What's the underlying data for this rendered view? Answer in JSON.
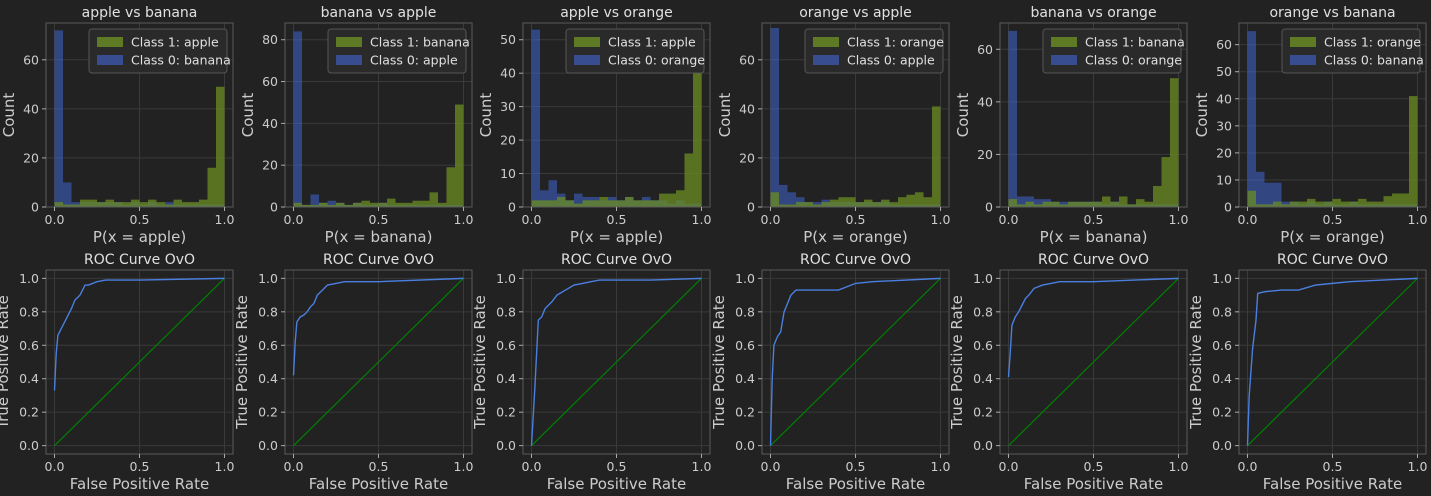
{
  "colors": {
    "class1": "#6b8e23",
    "class0": "#4169e1",
    "roc": "#4a7fe0",
    "diagonal": "#008000"
  },
  "chart_data": [
    {
      "type": "bar",
      "kind": "histogram",
      "title": "apple vs banana",
      "xlabel": "P(x = apple)",
      "ylabel": "Count",
      "xlim": [
        -0.05,
        1.05
      ],
      "ylim": [
        0,
        75
      ],
      "xticks": [
        "0.0",
        "0.5",
        "1.0"
      ],
      "yticks": [
        "0",
        "20",
        "40",
        "60"
      ],
      "ytick_values": [
        0,
        20,
        40,
        60
      ],
      "bin_width": 0.05,
      "legend": [
        "Class 1: apple",
        "Class 0: banana"
      ],
      "legend_position": "upper-right",
      "series": [
        {
          "name": "Class 0: banana",
          "values": [
            72,
            10,
            2,
            2,
            2,
            2,
            2,
            2,
            1,
            2,
            1,
            2,
            1,
            2,
            1,
            1,
            1,
            1,
            1,
            1
          ]
        },
        {
          "name": "Class 1: apple",
          "values": [
            2,
            1,
            1,
            3,
            3,
            2,
            3,
            2,
            2,
            3,
            2,
            3,
            2,
            1,
            3,
            2,
            2,
            3,
            16,
            49
          ]
        }
      ]
    },
    {
      "type": "bar",
      "kind": "histogram",
      "title": "banana vs apple",
      "xlabel": "P(x = banana)",
      "ylabel": "Count",
      "xlim": [
        -0.05,
        1.05
      ],
      "ylim": [
        0,
        88
      ],
      "xticks": [
        "0.0",
        "0.5",
        "1.0"
      ],
      "yticks": [
        "0",
        "20",
        "40",
        "60",
        "80"
      ],
      "ytick_values": [
        0,
        20,
        40,
        60,
        80
      ],
      "bin_width": 0.05,
      "legend": [
        "Class 1: banana",
        "Class 0: apple"
      ],
      "legend_position": "upper-right",
      "series": [
        {
          "name": "Class 0: apple",
          "values": [
            84,
            1,
            6,
            2,
            3,
            2,
            1,
            2,
            1,
            1,
            2,
            1,
            1,
            1,
            1,
            1,
            1,
            1,
            1,
            1
          ]
        },
        {
          "name": "Class 1: banana",
          "values": [
            2,
            1,
            1,
            2,
            1,
            2,
            1,
            2,
            3,
            2,
            2,
            4,
            2,
            2,
            3,
            3,
            7,
            2,
            19,
            49
          ]
        }
      ]
    },
    {
      "type": "bar",
      "kind": "histogram",
      "title": "apple vs orange",
      "xlabel": "P(x = apple)",
      "ylabel": "Count",
      "xlim": [
        -0.05,
        1.05
      ],
      "ylim": [
        0,
        55
      ],
      "xticks": [
        "0.0",
        "0.5",
        "1.0"
      ],
      "yticks": [
        "0",
        "10",
        "20",
        "30",
        "40",
        "50"
      ],
      "ytick_values": [
        0,
        10,
        20,
        30,
        40,
        50
      ],
      "bin_width": 0.05,
      "legend": [
        "Class 1: apple",
        "Class 0: orange"
      ],
      "legend_position": "upper-right",
      "series": [
        {
          "name": "Class 0: orange",
          "values": [
            53,
            5,
            8,
            4,
            2,
            4,
            3,
            3,
            2,
            3,
            2,
            3,
            2,
            3,
            2,
            2,
            1,
            2,
            1,
            1
          ]
        },
        {
          "name": "Class 1: apple",
          "values": [
            2,
            2,
            2,
            3,
            2,
            1,
            2,
            2,
            3,
            2,
            2,
            3,
            2,
            2,
            2,
            4,
            4,
            5,
            16,
            49
          ]
        }
      ]
    },
    {
      "type": "bar",
      "kind": "histogram",
      "title": "orange vs apple",
      "xlabel": "P(x = orange)",
      "ylabel": "Count",
      "xlim": [
        -0.05,
        1.05
      ],
      "ylim": [
        0,
        75
      ],
      "xticks": [
        "0.0",
        "0.5",
        "1.0"
      ],
      "yticks": [
        "0",
        "20",
        "40",
        "60"
      ],
      "ytick_values": [
        0,
        20,
        40,
        60
      ],
      "bin_width": 0.05,
      "legend": [
        "Class 1: orange",
        "Class 0: apple"
      ],
      "legend_position": "upper-right",
      "series": [
        {
          "name": "Class 0: apple",
          "values": [
            73,
            9,
            6,
            4,
            2,
            2,
            3,
            2,
            2,
            2,
            2,
            2,
            2,
            2,
            1,
            1,
            1,
            1,
            1,
            1
          ]
        },
        {
          "name": "Class 1: orange",
          "values": [
            6,
            1,
            1,
            2,
            2,
            1,
            2,
            3,
            4,
            4,
            2,
            3,
            2,
            3,
            2,
            4,
            5,
            6,
            4,
            41
          ]
        }
      ]
    },
    {
      "type": "bar",
      "kind": "histogram",
      "title": "banana vs orange",
      "xlabel": "P(x = banana)",
      "ylabel": "Count",
      "xlim": [
        -0.05,
        1.05
      ],
      "ylim": [
        0,
        70
      ],
      "xticks": [
        "0.0",
        "0.5",
        "1.0"
      ],
      "yticks": [
        "0",
        "20",
        "40",
        "60"
      ],
      "ytick_values": [
        0,
        20,
        40,
        60
      ],
      "bin_width": 0.05,
      "legend": [
        "Class 1: banana",
        "Class 0: orange"
      ],
      "legend_position": "upper-right",
      "series": [
        {
          "name": "Class 0: orange",
          "values": [
            67,
            4,
            4,
            3,
            3,
            2,
            2,
            2,
            2,
            2,
            2,
            1,
            2,
            1,
            1,
            1,
            1,
            1,
            1,
            1
          ]
        },
        {
          "name": "Class 1: banana",
          "values": [
            3,
            1,
            2,
            1,
            2,
            2,
            1,
            2,
            2,
            2,
            2,
            4,
            2,
            4,
            1,
            3,
            2,
            8,
            19,
            49
          ]
        }
      ]
    },
    {
      "type": "bar",
      "kind": "histogram",
      "title": "orange vs banana",
      "xlabel": "P(x = orange)",
      "ylabel": "Count",
      "xlim": [
        -0.05,
        1.05
      ],
      "ylim": [
        0,
        68
      ],
      "xticks": [
        "0.0",
        "0.5",
        "1.0"
      ],
      "yticks": [
        "0",
        "10",
        "20",
        "30",
        "40",
        "50",
        "60"
      ],
      "ytick_values": [
        0,
        10,
        20,
        30,
        40,
        50,
        60
      ],
      "bin_width": 0.05,
      "legend": [
        "Class 1: orange",
        "Class 0: banana"
      ],
      "legend_position": "upper-right",
      "series": [
        {
          "name": "Class 0: banana",
          "values": [
            65,
            13,
            9,
            9,
            2,
            2,
            1,
            2,
            1,
            2,
            1,
            1,
            2,
            1,
            1,
            1,
            1,
            1,
            1,
            1
          ]
        },
        {
          "name": "Class 1: orange",
          "values": [
            6,
            1,
            1,
            2,
            1,
            2,
            2,
            3,
            2,
            2,
            3,
            2,
            2,
            3,
            2,
            2,
            4,
            5,
            5,
            41
          ]
        }
      ]
    },
    {
      "type": "line",
      "title": "ROC Curve OvO",
      "xlabel": "False Positive Rate",
      "ylabel": "True Positive Rate",
      "xlim": [
        -0.05,
        1.05
      ],
      "ylim": [
        -0.05,
        1.05
      ],
      "xticks": [
        "0.0",
        "0.5",
        "1.0"
      ],
      "yticks": [
        "0.0",
        "0.2",
        "0.4",
        "0.6",
        "0.8",
        "1.0"
      ],
      "tick_values": [
        0,
        0.2,
        0.4,
        0.6,
        0.8,
        1.0
      ],
      "roc": {
        "x": [
          0.0,
          0.01,
          0.02,
          0.05,
          0.08,
          0.1,
          0.12,
          0.15,
          0.18,
          0.2,
          0.25,
          0.3,
          0.5,
          1.0
        ],
        "y": [
          0.33,
          0.55,
          0.66,
          0.72,
          0.78,
          0.82,
          0.87,
          0.9,
          0.96,
          0.96,
          0.98,
          0.99,
          0.99,
          1.0
        ]
      },
      "diagonal": {
        "x": [
          0,
          1
        ],
        "y": [
          0,
          1
        ]
      }
    },
    {
      "type": "line",
      "title": "ROC Curve OvO",
      "xlabel": "False Positive Rate",
      "ylabel": "True Positive Rate",
      "xlim": [
        -0.05,
        1.05
      ],
      "ylim": [
        -0.05,
        1.05
      ],
      "xticks": [
        "0.0",
        "0.5",
        "1.0"
      ],
      "yticks": [
        "0.0",
        "0.2",
        "0.4",
        "0.6",
        "0.8",
        "1.0"
      ],
      "tick_values": [
        0,
        0.2,
        0.4,
        0.6,
        0.8,
        1.0
      ],
      "roc": {
        "x": [
          0.0,
          0.01,
          0.02,
          0.04,
          0.06,
          0.08,
          0.1,
          0.12,
          0.14,
          0.17,
          0.2,
          0.25,
          0.3,
          0.5,
          1.0
        ],
        "y": [
          0.42,
          0.62,
          0.74,
          0.77,
          0.78,
          0.8,
          0.83,
          0.85,
          0.9,
          0.93,
          0.96,
          0.97,
          0.98,
          0.98,
          1.0
        ]
      },
      "diagonal": {
        "x": [
          0,
          1
        ],
        "y": [
          0,
          1
        ]
      }
    },
    {
      "type": "line",
      "title": "ROC Curve OvO",
      "xlabel": "False Positive Rate",
      "ylabel": "True Positive Rate",
      "xlim": [
        -0.05,
        1.05
      ],
      "ylim": [
        -0.05,
        1.05
      ],
      "xticks": [
        "0.0",
        "0.5",
        "1.0"
      ],
      "yticks": [
        "0.0",
        "0.2",
        "0.4",
        "0.6",
        "0.8",
        "1.0"
      ],
      "tick_values": [
        0,
        0.2,
        0.4,
        0.6,
        0.8,
        1.0
      ],
      "roc": {
        "x": [
          0.0,
          0.02,
          0.04,
          0.06,
          0.08,
          0.1,
          0.12,
          0.15,
          0.2,
          0.25,
          0.3,
          0.35,
          0.4,
          0.5,
          0.7,
          1.0
        ],
        "y": [
          0.0,
          0.35,
          0.75,
          0.77,
          0.82,
          0.84,
          0.86,
          0.9,
          0.93,
          0.96,
          0.97,
          0.98,
          0.99,
          0.99,
          0.99,
          1.0
        ]
      },
      "diagonal": {
        "x": [
          0,
          1
        ],
        "y": [
          0,
          1
        ]
      }
    },
    {
      "type": "line",
      "title": "ROC Curve OvO",
      "xlabel": "False Positive Rate",
      "ylabel": "True Positive Rate",
      "xlim": [
        -0.05,
        1.05
      ],
      "ylim": [
        -0.05,
        1.05
      ],
      "xticks": [
        "0.0",
        "0.5",
        "1.0"
      ],
      "yticks": [
        "0.0",
        "0.2",
        "0.4",
        "0.6",
        "0.8",
        "1.0"
      ],
      "tick_values": [
        0,
        0.2,
        0.4,
        0.6,
        0.8,
        1.0
      ],
      "roc": {
        "x": [
          0.0,
          0.01,
          0.02,
          0.04,
          0.06,
          0.08,
          0.1,
          0.12,
          0.15,
          0.2,
          0.3,
          0.4,
          0.5,
          0.6,
          1.0
        ],
        "y": [
          0.0,
          0.4,
          0.6,
          0.65,
          0.68,
          0.8,
          0.85,
          0.9,
          0.93,
          0.93,
          0.93,
          0.93,
          0.97,
          0.98,
          1.0
        ]
      },
      "diagonal": {
        "x": [
          0,
          1
        ],
        "y": [
          0,
          1
        ]
      }
    },
    {
      "type": "line",
      "title": "ROC Curve OvO",
      "xlabel": "False Positive Rate",
      "ylabel": "True Positive Rate",
      "xlim": [
        -0.05,
        1.05
      ],
      "ylim": [
        -0.05,
        1.05
      ],
      "xticks": [
        "0.0",
        "0.5",
        "1.0"
      ],
      "yticks": [
        "0.0",
        "0.2",
        "0.4",
        "0.6",
        "0.8",
        "1.0"
      ],
      "tick_values": [
        0,
        0.2,
        0.4,
        0.6,
        0.8,
        1.0
      ],
      "roc": {
        "x": [
          0.0,
          0.01,
          0.02,
          0.04,
          0.06,
          0.08,
          0.1,
          0.12,
          0.15,
          0.2,
          0.25,
          0.3,
          0.4,
          0.5,
          1.0
        ],
        "y": [
          0.41,
          0.55,
          0.72,
          0.77,
          0.8,
          0.84,
          0.88,
          0.9,
          0.94,
          0.96,
          0.97,
          0.98,
          0.98,
          0.98,
          1.0
        ]
      },
      "diagonal": {
        "x": [
          0,
          1
        ],
        "y": [
          0,
          1
        ]
      }
    },
    {
      "type": "line",
      "title": "ROC Curve OvO",
      "xlabel": "False Positive Rate",
      "ylabel": "True Positive Rate",
      "xlim": [
        -0.05,
        1.05
      ],
      "ylim": [
        -0.05,
        1.05
      ],
      "xticks": [
        "0.0",
        "0.5",
        "1.0"
      ],
      "yticks": [
        "0.0",
        "0.2",
        "0.4",
        "0.6",
        "0.8",
        "1.0"
      ],
      "tick_values": [
        0,
        0.2,
        0.4,
        0.6,
        0.8,
        1.0
      ],
      "roc": {
        "x": [
          0.0,
          0.01,
          0.03,
          0.05,
          0.06,
          0.1,
          0.2,
          0.3,
          0.4,
          0.5,
          0.6,
          1.0
        ],
        "y": [
          0.0,
          0.3,
          0.58,
          0.75,
          0.91,
          0.92,
          0.93,
          0.93,
          0.96,
          0.97,
          0.98,
          1.0
        ]
      },
      "diagonal": {
        "x": [
          0,
          1
        ],
        "y": [
          0,
          1
        ]
      }
    }
  ]
}
